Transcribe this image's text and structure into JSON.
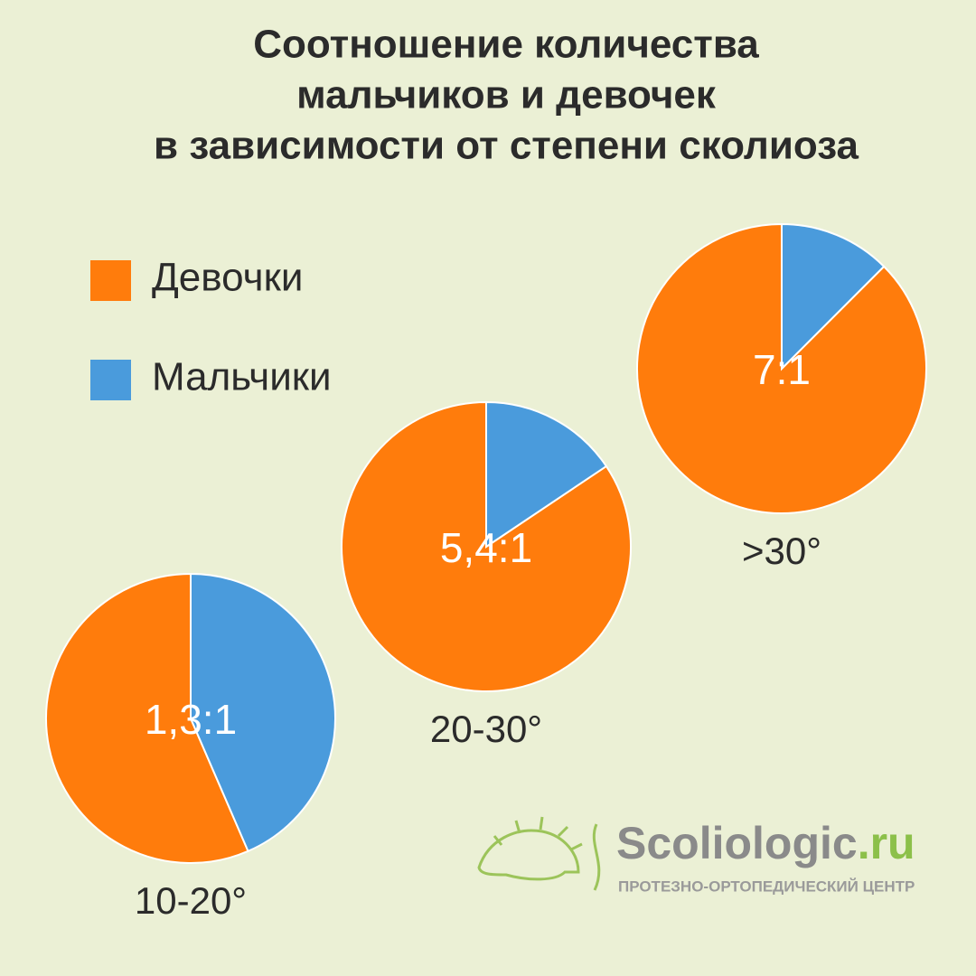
{
  "title": [
    "Соотношение количества",
    "мальчиков и девочек",
    "в зависимости от степени сколиоза"
  ],
  "logo": {
    "name": "Scoliologic",
    "domain": ".ru",
    "subtitle": "ПРОТЕЗНО-ОРТОПЕДИЧЕСКИЙ ЦЕНТР"
  },
  "chart_data": [
    {
      "type": "pie",
      "title": "10-20°",
      "annotation": "1,3:1",
      "categories": [
        "Девочки",
        "Мальчики"
      ],
      "values": [
        56.5,
        43.5
      ],
      "colors": [
        "#ff7c0c",
        "#4a9bdc"
      ]
    },
    {
      "type": "pie",
      "title": "20-30°",
      "annotation": "5,4:1",
      "categories": [
        "Девочки",
        "Мальчики"
      ],
      "values": [
        84.4,
        15.6
      ],
      "colors": [
        "#ff7c0c",
        "#4a9bdc"
      ]
    },
    {
      "type": "pie",
      "title": ">30°",
      "annotation": "7:1",
      "categories": [
        "Девочки",
        "Мальчики"
      ],
      "values": [
        87.5,
        12.5
      ],
      "colors": [
        "#ff7c0c",
        "#4a9bdc"
      ]
    }
  ]
}
